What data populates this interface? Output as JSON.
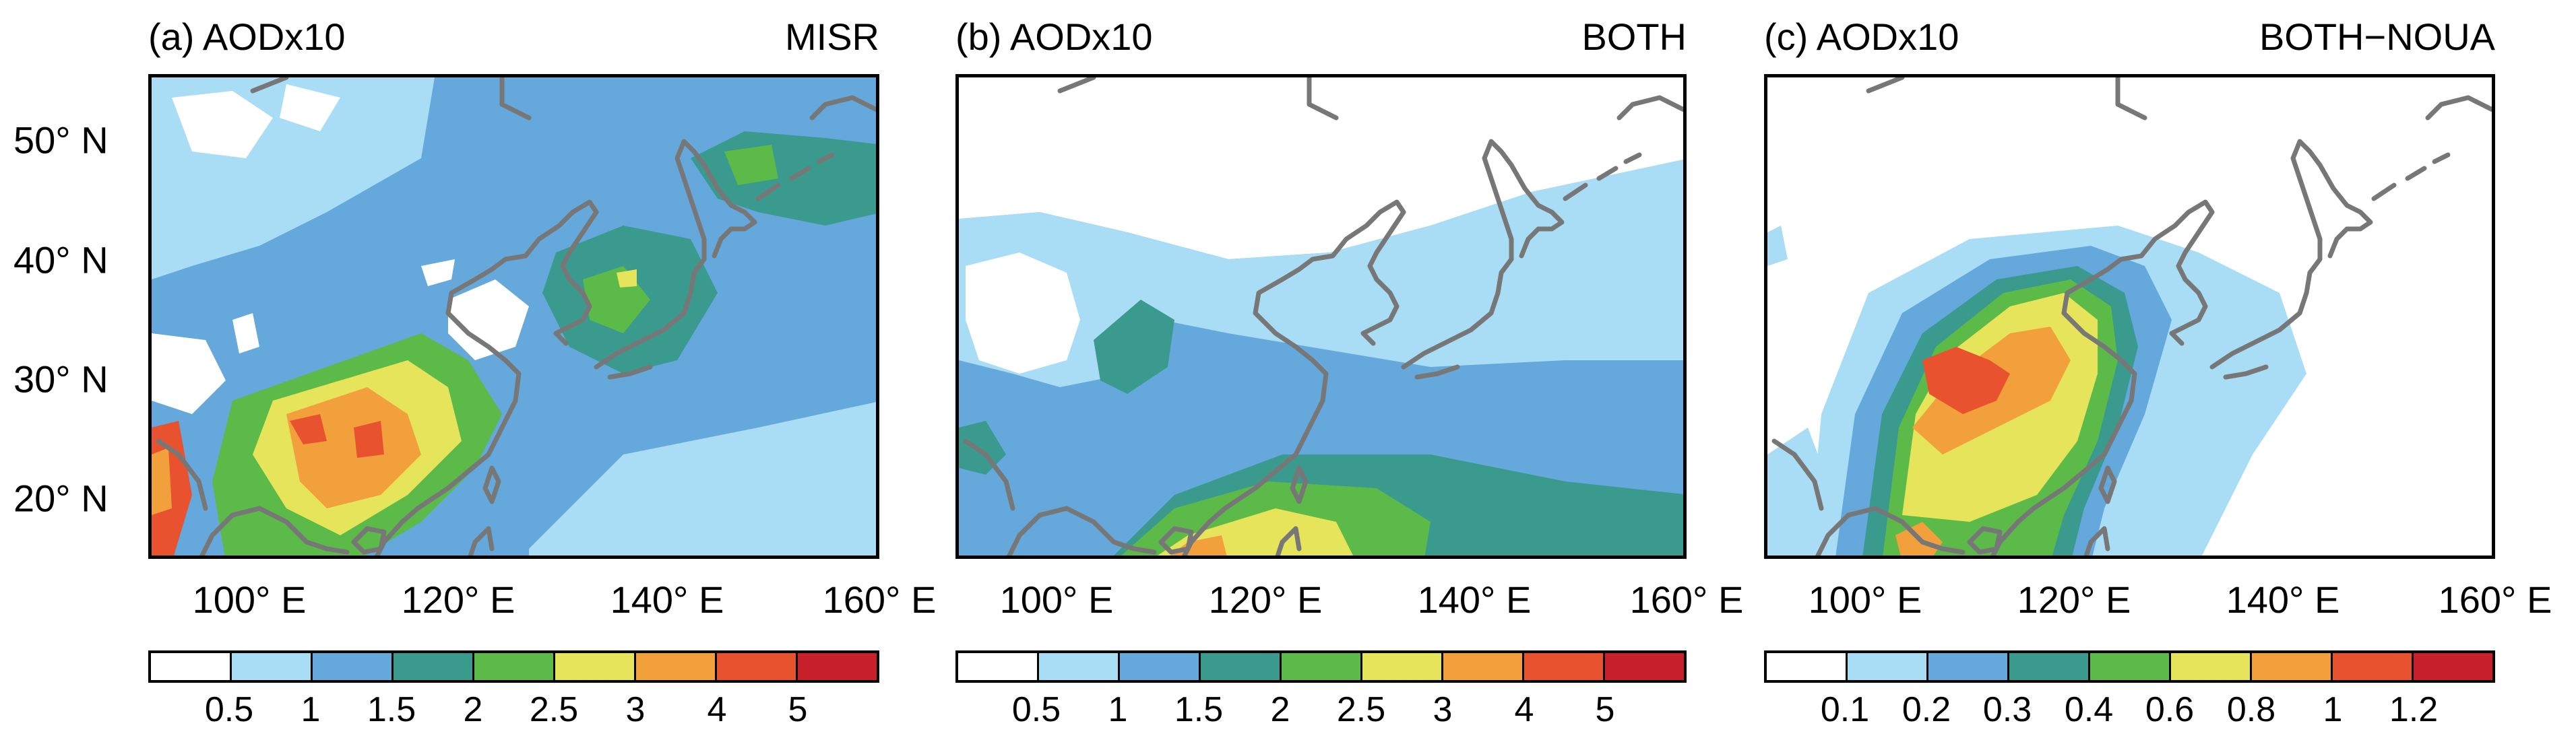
{
  "palette": [
    "#ffffff",
    "#a8ddf5",
    "#64a8dc",
    "#3a9a8e",
    "#5cba49",
    "#e6e45a",
    "#f2a03c",
    "#e8522e",
    "#c8202a"
  ],
  "coast_color": "#777777",
  "y_ticks": [
    "50° N",
    "40° N",
    "30° N",
    "20° N"
  ],
  "x_ticks": [
    "100° E",
    "120° E",
    "140° E",
    "160° E"
  ],
  "panels": [
    {
      "label_left": "(a)  AODx10",
      "label_right": "MISR",
      "colorbar_labels": [
        "0.5",
        "1",
        "1.5",
        "2",
        "2.5",
        "3",
        "4",
        "5"
      ]
    },
    {
      "label_left": "(b)  AODx10",
      "label_right": "BOTH",
      "colorbar_labels": [
        "0.5",
        "1",
        "1.5",
        "2",
        "2.5",
        "3",
        "4",
        "5"
      ]
    },
    {
      "label_left": "(c)  AODx10",
      "label_right": "BOTH−NOUA",
      "colorbar_labels": [
        "0.1",
        "0.2",
        "0.3",
        "0.4",
        "0.6",
        "0.8",
        "1",
        "1.2"
      ]
    }
  ]
}
